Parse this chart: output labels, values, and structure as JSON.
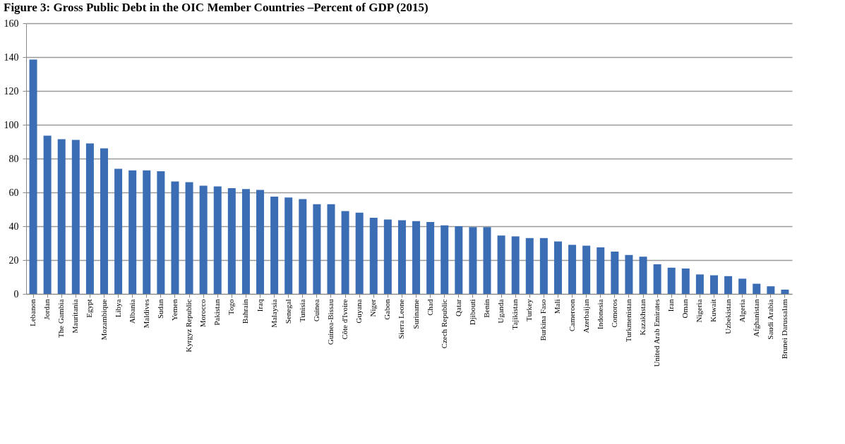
{
  "chart_data": {
    "type": "bar",
    "title": "Figure 3: Gross Public Debt in the OIC Member Countries –Percent of GDP (2015)",
    "categories": [
      "Lebanon",
      "Jordan",
      "The Gambia",
      "Mauritania",
      "Egypt",
      "Mozambique",
      "Libya",
      "Albania",
      "Maldives",
      "Sudan",
      "Yemen",
      "Kyrgyz Republic",
      "Morocco",
      "Pakistan",
      "Togo",
      "Bahrain",
      "Iraq",
      "Malaysia",
      "Senegal",
      "Tunisia",
      "Guinea",
      "Guinea-Bissau",
      "Côte d'Ivoire",
      "Guyana",
      "Niger",
      "Gabon",
      "Sierra Leone",
      "Suriname",
      "Chad",
      "Czech Republic",
      "Qatar",
      "Djibouti",
      "Benin",
      "Uganda",
      "Tajikistan",
      "Turkey",
      "Burkina Faso",
      "Mali",
      "Cameroon",
      "Azerbaijan",
      "Indonesia",
      "Comoros",
      "Turkmenistan",
      "Kazakhstan",
      "United Arab Emirates",
      "Iran",
      "Oman",
      "Nigeria",
      "Kuwait",
      "Uzbekistan",
      "Algeria",
      "Afghanistan",
      "Saudi Arabia",
      "Brunei Darussalam"
    ],
    "values": [
      138.5,
      93.5,
      91.5,
      91,
      89,
      86,
      74,
      73,
      73,
      72.5,
      66.5,
      66,
      64,
      63.5,
      62.5,
      62,
      61.5,
      57.5,
      57,
      56,
      53,
      53,
      49,
      48,
      45,
      44,
      43.5,
      43,
      42.5,
      40.5,
      40,
      39.5,
      39.5,
      34.5,
      34,
      33,
      33,
      31,
      29,
      28.5,
      27.5,
      25,
      23,
      22,
      17.5,
      15.5,
      15,
      11.5,
      11,
      10.5,
      9,
      6,
      4.5,
      2.5
    ],
    "color": "#3b6db4",
    "ylim": [
      0,
      160
    ],
    "yticks": [
      0,
      20,
      40,
      60,
      80,
      100,
      120,
      140,
      160
    ],
    "grid": "y"
  }
}
